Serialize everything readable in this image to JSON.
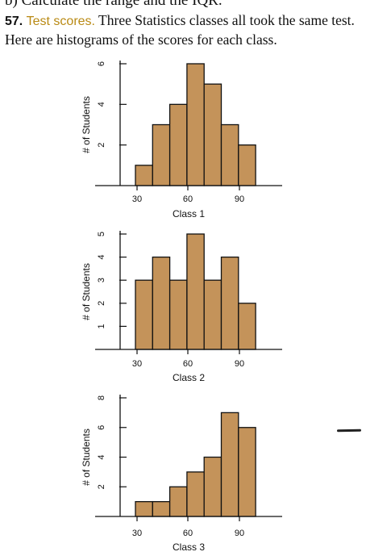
{
  "top_fragment": "b) Calculate the range and the IQR.",
  "problem": {
    "number": "57.",
    "title": "Test scores.",
    "text": "Three Statistics classes all took the same test. Here are histograms of the scores for each class."
  },
  "chart_data": [
    {
      "type": "bar",
      "title": "",
      "xlabel": "Class 1",
      "ylabel": "# of Students",
      "bins": [
        "25-35",
        "35-45",
        "45-55",
        "55-65",
        "65-75",
        "75-85",
        "85-95"
      ],
      "values": [
        1,
        3,
        4,
        6,
        5,
        3,
        2
      ],
      "x_ticks": [
        30,
        60,
        90
      ],
      "y_ticks": [
        2,
        4,
        6
      ],
      "xlim": [
        17,
        112
      ],
      "ylim": [
        0,
        6
      ],
      "bar_color": "#c4935a"
    },
    {
      "type": "bar",
      "title": "",
      "xlabel": "Class 2",
      "ylabel": "# of Students",
      "bins": [
        "30-40",
        "40-50",
        "50-60",
        "60-70",
        "70-80",
        "80-90",
        "90-100"
      ],
      "values": [
        3,
        4,
        3,
        5,
        3,
        4,
        2
      ],
      "x_ticks": [
        30,
        60,
        90
      ],
      "y_ticks": [
        1,
        2,
        3,
        4,
        5
      ],
      "xlim": [
        17,
        112
      ],
      "ylim": [
        0,
        5
      ],
      "bar_color": "#c4935a"
    },
    {
      "type": "bar",
      "title": "",
      "xlabel": "Class 3",
      "ylabel": "# of Students",
      "bins": [
        "30-40",
        "40-50",
        "50-60",
        "60-70",
        "70-80",
        "80-90",
        "90-100"
      ],
      "values": [
        1,
        1,
        2,
        3,
        4,
        7,
        6
      ],
      "x_ticks": [
        30,
        60,
        90
      ],
      "y_ticks": [
        2,
        4,
        6,
        8
      ],
      "xlim": [
        17,
        112
      ],
      "ylim": [
        0,
        8
      ],
      "bar_color": "#c4935a"
    }
  ]
}
